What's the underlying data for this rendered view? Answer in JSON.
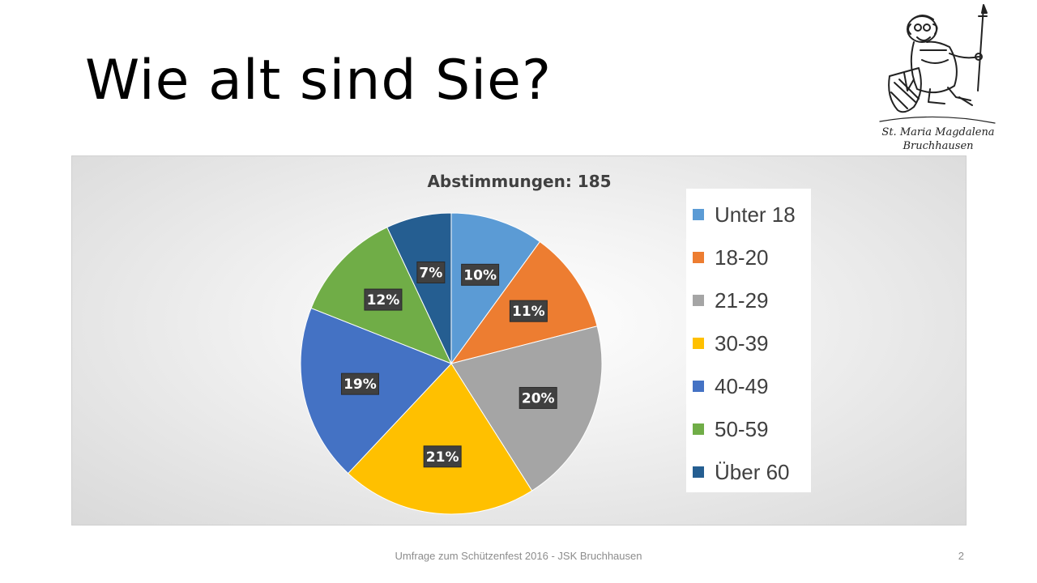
{
  "slide": {
    "title": "Wie alt sind Sie?",
    "footer": "Umfrage zum Schützenfest 2016 - JSK Bruchhausen",
    "page_number": "2"
  },
  "logo": {
    "line1": "St. Maria Magdalena",
    "line2": "Bruchhausen"
  },
  "chart_data": {
    "type": "pie",
    "title": "Abstimmungen: 185",
    "categories": [
      "Unter 18",
      "18-20",
      "21-29",
      "30-39",
      "40-49",
      "50-59",
      "Über 60"
    ],
    "values": [
      10,
      11,
      20,
      21,
      19,
      12,
      7
    ],
    "labels": [
      "10%",
      "11%",
      "20%",
      "21%",
      "19%",
      "12%",
      "7%"
    ],
    "unit": "%",
    "colors": [
      "#5B9BD5",
      "#ED7D31",
      "#A5A5A5",
      "#FFC000",
      "#4472C4",
      "#70AD47",
      "#255E91"
    ],
    "start_angle": "12 o'clock",
    "direction": "clockwise",
    "legend_position": "right",
    "label_style": "white bold text on dark boxes"
  }
}
